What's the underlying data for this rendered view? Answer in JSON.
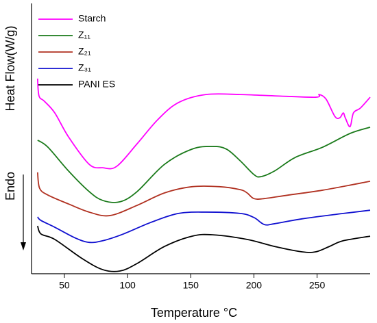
{
  "chart_data": {
    "type": "line",
    "x_label": "Temperature °C",
    "y_label": "Heat Flow(W/g)",
    "annotation": "Endo",
    "xlim": [
      24,
      292
    ],
    "xticks": [
      50,
      100,
      150,
      200,
      250
    ],
    "ylim": [
      0,
      100
    ],
    "legend": "upper left",
    "series": [
      {
        "name": "Starch",
        "color": "#ff00ff",
        "x": [
          28.8,
          29.9,
          34.2,
          42.4,
          53.3,
          69.6,
          80.4,
          91.3,
          107.6,
          123.9,
          140.2,
          162,
          189.1,
          216.3,
          248.9,
          251.6,
          257.1,
          264.1,
          268,
          270.7,
          272.3,
          276.1,
          278.8,
          284.3,
          292
        ],
        "values": [
          72.2,
          65.8,
          63.8,
          59.5,
          50.6,
          40.5,
          39.2,
          39.7,
          48.1,
          57.0,
          63.3,
          66.3,
          66.3,
          65.8,
          65.3,
          66.3,
          64.6,
          58.2,
          57.7,
          59.5,
          57.7,
          54.4,
          59.5,
          61.3,
          65.3
        ]
      },
      {
        "name": "Z₁₁",
        "color": "#1a7a1a",
        "x": [
          28.8,
          37,
          53.3,
          69.6,
          80.4,
          94,
          107.6,
          129.3,
          151.1,
          167.4,
          178.3,
          189.1,
          200,
          205.4,
          216.3,
          232.6,
          254.3,
          276.1,
          292
        ],
        "values": [
          49.4,
          46.8,
          38,
          30.4,
          27.1,
          26.6,
          30.4,
          40.5,
          46.1,
          47.1,
          46.1,
          41.8,
          36.7,
          35.9,
          38,
          43,
          46.8,
          51.9,
          54.2
        ]
      },
      {
        "name": "Z₂₁",
        "color": "#b03020",
        "x": [
          28.8,
          30.4,
          37,
          53.3,
          69.6,
          85.9,
          107.6,
          129.3,
          151.1,
          172.8,
          189.1,
          194.6,
          200,
          208.2,
          227.2,
          254.3,
          292
        ],
        "values": [
          37.5,
          31.6,
          29.1,
          25.8,
          22.8,
          21.5,
          25.3,
          29.9,
          32.2,
          32.2,
          31.1,
          29.9,
          27.8,
          27.8,
          29.1,
          30.9,
          34.2
        ]
      },
      {
        "name": "Z₃₁",
        "color": "#1010d0",
        "x": [
          28.8,
          31.5,
          42.4,
          58.7,
          69.6,
          80.4,
          96.7,
          118.5,
          140.2,
          162,
          189.1,
          200,
          208.2,
          216.3,
          238,
          270.7,
          292
        ],
        "values": [
          21,
          19.7,
          17.2,
          13.2,
          11.6,
          12.2,
          14.7,
          19,
          22.3,
          22.8,
          22.3,
          20.8,
          18.2,
          18.5,
          20.3,
          22.3,
          23.5
        ]
      },
      {
        "name": "PANI ES",
        "color": "#000000",
        "x": [
          28.8,
          31.5,
          42.4,
          64.1,
          80.4,
          94,
          107.6,
          129.3,
          151.1,
          167.4,
          194.6,
          216.3,
          238,
          248.9,
          259.8,
          270.7,
          292
        ],
        "values": [
          17.7,
          14.7,
          12.7,
          5.6,
          1.5,
          1,
          3.8,
          10.1,
          13.9,
          14.4,
          12.7,
          10.1,
          8.1,
          8.1,
          10.1,
          12.2,
          13.9
        ]
      }
    ]
  }
}
